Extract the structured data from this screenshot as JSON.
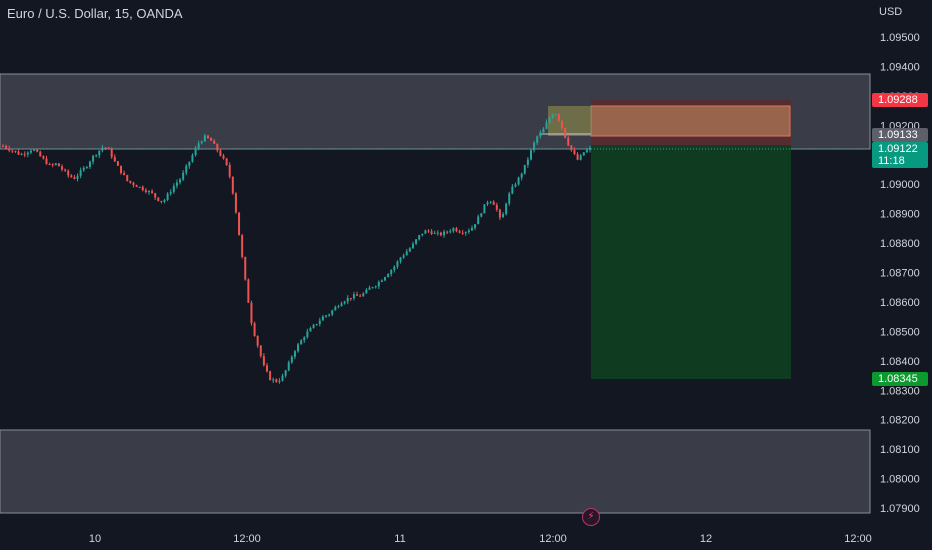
{
  "header": {
    "title": "Euro / U.S. Dollar, 15, OANDA"
  },
  "axis": {
    "currency": "USD",
    "events_icon": "flash-icon"
  },
  "badges": {
    "stop": {
      "price": "1.09288",
      "color": "#f23645"
    },
    "entry": {
      "price": "1.09133",
      "color": "#5d606b"
    },
    "current": {
      "price": "1.09122",
      "countdown": "11:18",
      "color": "#089981"
    },
    "target": {
      "price": "1.08345",
      "color": "#0b9a2e"
    }
  },
  "chart_data": {
    "type": "candlestick",
    "title": "Euro / U.S. Dollar, 15, OANDA",
    "ylabel": "USD",
    "ylim": [
      1.0788,
      1.0961
    ],
    "y_ticks": [
      "1.09500",
      "1.09400",
      "1.09300",
      "1.09200",
      "1.09100",
      "1.09000",
      "1.08900",
      "1.08800",
      "1.08700",
      "1.08600",
      "1.08500",
      "1.08400",
      "1.08300",
      "1.08200",
      "1.08100",
      "1.08000",
      "1.07900"
    ],
    "x_ticks": [
      "10",
      "12:00",
      "11",
      "12:00",
      "12",
      "12:00"
    ],
    "grid": false,
    "zones": [
      {
        "name": "upper-zone",
        "from": 1.09135,
        "to": 1.0938,
        "color": "#3a3d48"
      },
      {
        "name": "lower-zone",
        "from": 1.07895,
        "to": 1.08165,
        "color": "#3a3d48"
      }
    ],
    "position": {
      "side": "short",
      "entry": 1.09133,
      "stop": 1.09288,
      "target": 1.08345,
      "current": 1.09122
    },
    "close_path": [
      1.0913,
      1.0912,
      1.0911,
      1.091,
      1.0911,
      1.0912,
      1.091,
      1.0908,
      1.0906,
      1.0907,
      1.0905,
      1.0903,
      1.0902,
      1.0904,
      1.0906,
      1.0909,
      1.0911,
      1.0913,
      1.0911,
      1.0907,
      1.0904,
      1.0901,
      1.09,
      1.0899,
      1.0898,
      1.0897,
      1.0895,
      1.0894,
      1.0897,
      1.09,
      1.0902,
      1.0906,
      1.091,
      1.0914,
      1.0916,
      1.0915,
      1.0912,
      1.0909,
      1.0905,
      1.0895,
      1.088,
      1.0865,
      1.0852,
      1.0845,
      1.0838,
      1.0834,
      1.0833,
      1.0834,
      1.0838,
      1.0843,
      1.0846,
      1.0849,
      1.0851,
      1.0853,
      1.0855,
      1.0856,
      1.0858,
      1.086,
      1.0861,
      1.0862,
      1.0862,
      1.0863,
      1.0865,
      1.0866,
      1.0868,
      1.087,
      1.0872,
      1.0875,
      1.0877,
      1.0879,
      1.0882,
      1.0884,
      1.0884,
      1.0883,
      1.0883,
      1.0884,
      1.0885,
      1.0884,
      1.0884,
      1.0885,
      1.0888,
      1.0892,
      1.0895,
      1.0893,
      1.0887,
      1.0895,
      1.0899,
      1.0902,
      1.0906,
      1.0911,
      1.0916,
      1.0918,
      1.0922,
      1.0925,
      1.0921,
      1.0915,
      1.0911,
      1.0908,
      1.0911,
      1.0912
    ]
  }
}
